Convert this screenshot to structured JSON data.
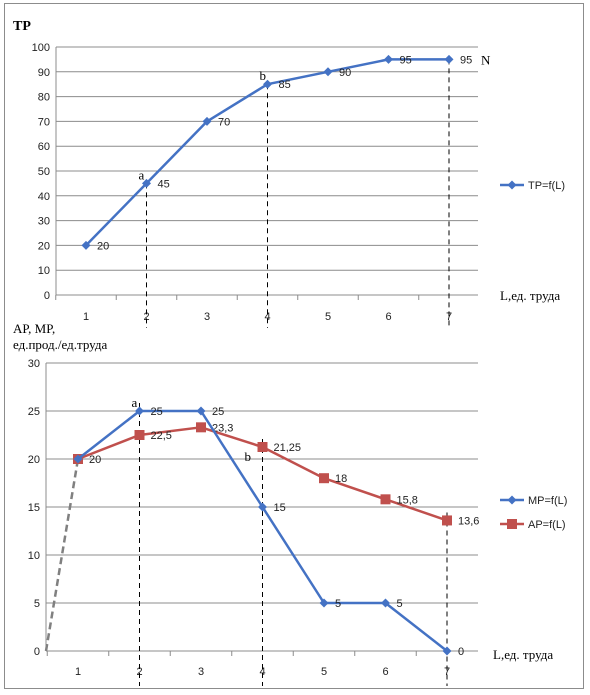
{
  "chart_data": [
    {
      "type": "line",
      "title": "TP",
      "xlabel": "L,ед. труда",
      "ylabel": "",
      "ylim": [
        0,
        100
      ],
      "yticks": [
        0,
        10,
        20,
        30,
        40,
        50,
        60,
        70,
        80,
        90,
        100
      ],
      "x": [
        1,
        2,
        3,
        4,
        5,
        6,
        7
      ],
      "grid": true,
      "legend_position": "right",
      "series": [
        {
          "name": "TP=f(L)",
          "color": "#4472C4",
          "marker": "diamond",
          "values": [
            20,
            45,
            70,
            85,
            90,
            95,
            95
          ],
          "labels": [
            "20",
            "45",
            "70",
            "85",
            "90",
            "95",
            "95"
          ]
        }
      ],
      "point_annotations": [
        {
          "text": "a",
          "x": 2
        },
        {
          "text": "b",
          "x": 4
        },
        {
          "text": "N",
          "x": 7
        }
      ],
      "vertical_dashed_at": [
        2,
        4,
        7
      ]
    },
    {
      "type": "line",
      "title": "AP, MP,\nед.прод./ед.труда",
      "xlabel": "L,ед. труда",
      "ylabel": "",
      "ylim": [
        0,
        30
      ],
      "yticks": [
        0,
        5,
        10,
        15,
        20,
        25,
        30
      ],
      "x": [
        1,
        2,
        3,
        4,
        5,
        6,
        7
      ],
      "grid": true,
      "legend_position": "right",
      "series": [
        {
          "name": "MP=f(L)",
          "color": "#4472C4",
          "marker": "diamond",
          "values": [
            20,
            25,
            25,
            15,
            5,
            5,
            0
          ],
          "labels": [
            "20",
            "25",
            "25",
            "15",
            "5",
            "5",
            "0"
          ]
        },
        {
          "name": "AP=f(L)",
          "color": "#C0504D",
          "marker": "square",
          "values": [
            20,
            22.5,
            23.3,
            21.25,
            18,
            15.8,
            13.6
          ],
          "labels": [
            "",
            "22,5",
            "23,3",
            "21,25",
            "18",
            "15,8",
            "13,6"
          ]
        }
      ],
      "point_annotations": [
        {
          "text": "a",
          "x": 2
        },
        {
          "text": "b",
          "x": 4
        }
      ],
      "extension_line": {
        "style": "dashed",
        "color": "#808080",
        "from": [
          0,
          0
        ],
        "to": [
          1,
          20
        ]
      },
      "vertical_dashed_at": [
        2,
        4,
        7
      ]
    }
  ]
}
